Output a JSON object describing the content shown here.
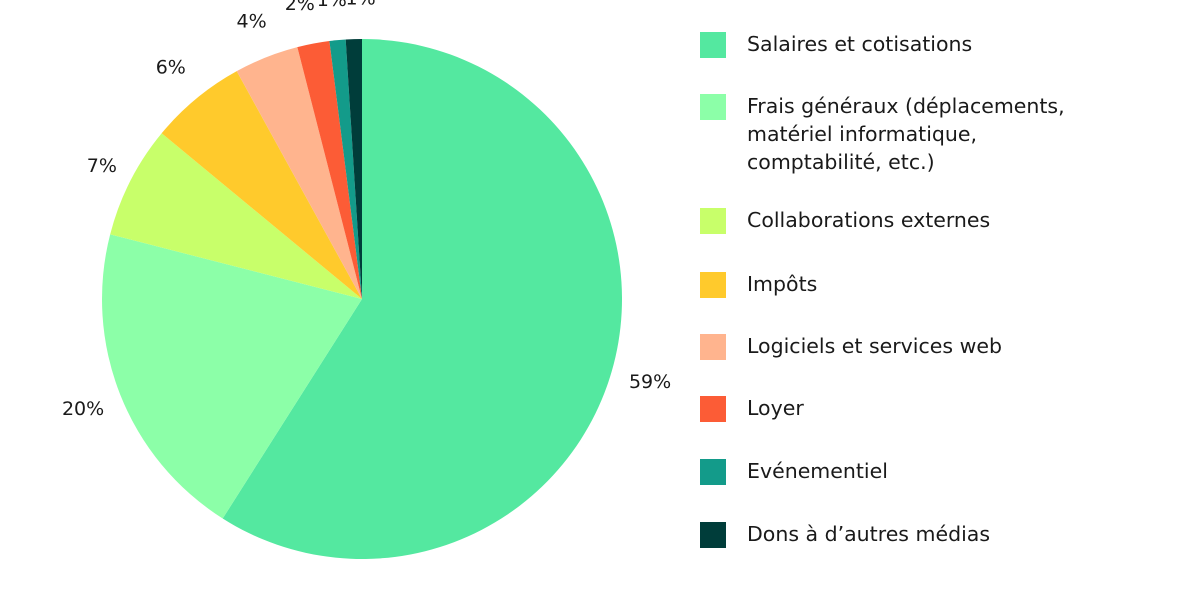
{
  "chart_data": {
    "type": "pie",
    "title": "",
    "start_angle_deg": 0,
    "direction": "clockwise",
    "slices": [
      {
        "label": "Salaires et cotisations",
        "value": 59,
        "display": "59%",
        "color": "#54e8a0"
      },
      {
        "label": "Frais généraux (déplacements,\nmatériel informatique,\ncomptabilité, etc.)",
        "value": 20,
        "display": "20%",
        "color": "#8cffa8"
      },
      {
        "label": "Collaborations externes",
        "value": 7,
        "display": "7%",
        "color": "#c8ff6a"
      },
      {
        "label": "Impôts",
        "value": 6,
        "display": "6%",
        "color": "#ffca2c"
      },
      {
        "label": "Logiciels et services web",
        "value": 4,
        "display": "4%",
        "color": "#ffb48e"
      },
      {
        "label": "Loyer",
        "value": 2,
        "display": "2%",
        "color": "#fc5c36"
      },
      {
        "label": "Evénementiel",
        "value": 1,
        "display": "1%",
        "color": "#139b8a"
      },
      {
        "label": "Dons à d’autres médias",
        "value": 1,
        "display": "1%",
        "color": "#003d3a"
      }
    ],
    "legend_position": "right"
  }
}
